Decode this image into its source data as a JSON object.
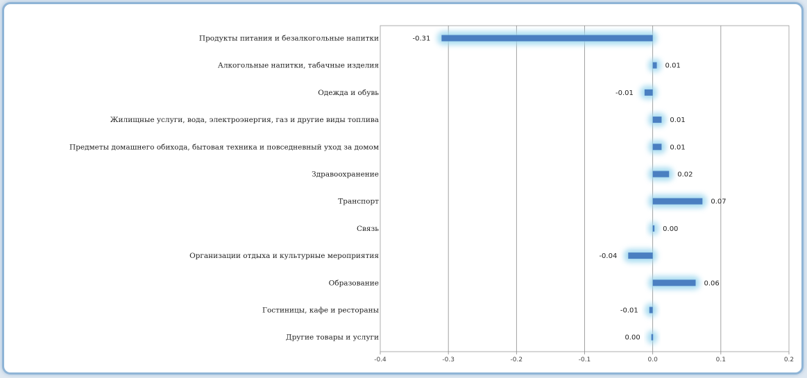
{
  "chart_data": {
    "type": "bar",
    "orientation": "horizontal",
    "categories": [
      "Продукты питания и безалкогольные напитки",
      "Алкогольные напитки, табачные изделия",
      "Одежда и обувь",
      "Жилищные услуги, вода, электроэнергия, газ и другие виды топлива",
      "Предметы домашнего обихода, бытовая техника и повседневный уход за домом",
      "Здравоохранение",
      "Транспорт",
      "Связь",
      "Организации отдыха и культурные мероприятия",
      "Образование",
      "Гостиницы, кафе и рестораны",
      "Другие товары и услуги"
    ],
    "values": [
      -0.31,
      0.006,
      -0.012,
      0.013,
      0.013,
      0.024,
      0.073,
      0.0,
      -0.036,
      0.063,
      -0.005,
      -0.002
    ],
    "data_labels": [
      "-0.31",
      "0.01",
      "-0.01",
      "0.01",
      "0.01",
      "0.02",
      "0.07",
      "0.00",
      "-0.04",
      "0.06",
      "-0.01",
      "0.00"
    ],
    "tick_values": [
      -0.4,
      -0.3,
      -0.2,
      -0.1,
      0.0,
      0.1,
      0.2
    ],
    "tick_labels": [
      "-0.4",
      "-0.3",
      "-0.2",
      "-0.1",
      "0.0",
      "0.1",
      "0.2"
    ],
    "xlim": [
      -0.4,
      0.2
    ],
    "grid": true,
    "bar_color": "#4a7fc1",
    "glow_color": "#9fd8ef",
    "title": "",
    "xlabel": "",
    "ylabel": ""
  }
}
